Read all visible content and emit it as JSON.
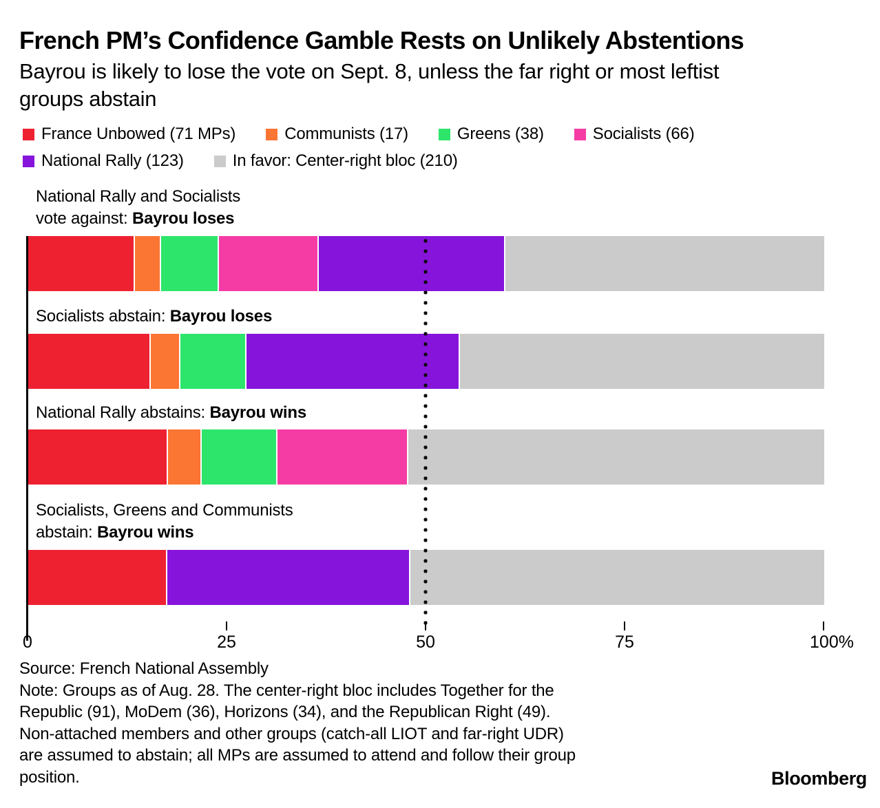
{
  "header": {
    "title": "French PM’s Confidence Gamble Rests on Unlikely Abstentions",
    "subtitle_lines": [
      "Bayrou is likely to lose the vote on Sept. 8, unless the far right or most leftist",
      "groups abstain"
    ]
  },
  "colors": {
    "france_unbowed": "#ee2131",
    "communists": "#fb7533",
    "greens": "#2de56b",
    "socialists": "#f53ca5",
    "national_rally": "#8614db",
    "in_favor": "#cbcbcb",
    "reference_line": "#0a0a0a",
    "axis": "#000000"
  },
  "legend": {
    "rows": [
      [
        {
          "key": "france_unbowed",
          "label": "France Unbowed (71 MPs)"
        },
        {
          "key": "communists",
          "label": "Communists (17)"
        },
        {
          "key": "greens",
          "label": "Greens (38)"
        },
        {
          "key": "socialists",
          "label": "Socialists (66)"
        }
      ],
      [
        {
          "key": "national_rally",
          "label": "National Rally (123)"
        },
        {
          "key": "in_favor",
          "label": "In favor: Center-right bloc (210)"
        }
      ]
    ]
  },
  "chart_data": {
    "type": "bar",
    "orientation": "horizontal",
    "stacked": true,
    "title": "French PM’s Confidence Gamble Rests on Unlikely Abstentions",
    "subtitle": "Bayrou is likely to lose the vote on Sept. 8, unless the far right or most leftist groups abstain",
    "xlim": [
      0,
      100
    ],
    "x_tick_values": [
      0,
      25,
      50,
      75,
      100
    ],
    "x_tick_labels": [
      "0",
      "25",
      "50",
      "75",
      "100%"
    ],
    "reference_line_pct": 50,
    "grid": false,
    "legend_position": "top",
    "parties": [
      {
        "key": "france_unbowed",
        "label": "France Unbowed",
        "mps": 71
      },
      {
        "key": "communists",
        "label": "Communists",
        "mps": 17
      },
      {
        "key": "greens",
        "label": "Greens",
        "mps": 38
      },
      {
        "key": "socialists",
        "label": "Socialists",
        "mps": 66
      },
      {
        "key": "national_rally",
        "label": "National Rally",
        "mps": 123
      },
      {
        "key": "in_favor",
        "label": "In favor: Center-right bloc",
        "mps": 210
      }
    ],
    "scenarios": [
      {
        "label_prefix": "National Rally and Socialists\nvote against: ",
        "label_bold": "Bayrou loses",
        "segments": [
          {
            "party": "france_unbowed",
            "mps": 71,
            "pct": 13.52
          },
          {
            "party": "communists",
            "mps": 17,
            "pct": 3.24
          },
          {
            "party": "greens",
            "mps": 38,
            "pct": 7.24
          },
          {
            "party": "socialists",
            "mps": 66,
            "pct": 12.57
          },
          {
            "party": "national_rally",
            "mps": 123,
            "pct": 23.43
          },
          {
            "party": "in_favor",
            "mps": 210,
            "pct": 40.0
          }
        ]
      },
      {
        "label_prefix": "Socialists abstain: ",
        "label_bold": "Bayrou loses",
        "segments": [
          {
            "party": "france_unbowed",
            "mps": 71,
            "pct": 15.47
          },
          {
            "party": "communists",
            "mps": 17,
            "pct": 3.7
          },
          {
            "party": "greens",
            "mps": 38,
            "pct": 8.28
          },
          {
            "party": "national_rally",
            "mps": 123,
            "pct": 26.8
          },
          {
            "party": "in_favor",
            "mps": 210,
            "pct": 45.75
          }
        ]
      },
      {
        "label_prefix": "National Rally abstains: ",
        "label_bold": "Bayrou wins",
        "segments": [
          {
            "party": "france_unbowed",
            "mps": 71,
            "pct": 17.66
          },
          {
            "party": "communists",
            "mps": 17,
            "pct": 4.23
          },
          {
            "party": "greens",
            "mps": 38,
            "pct": 9.45
          },
          {
            "party": "socialists",
            "mps": 66,
            "pct": 16.42
          },
          {
            "party": "in_favor",
            "mps": 210,
            "pct": 52.24
          }
        ]
      },
      {
        "label_prefix": "Socialists, Greens and Communists\nabstain: ",
        "label_bold": "Bayrou wins",
        "segments": [
          {
            "party": "france_unbowed",
            "mps": 71,
            "pct": 17.57
          },
          {
            "party": "national_rally",
            "mps": 123,
            "pct": 30.45
          },
          {
            "party": "in_favor",
            "mps": 210,
            "pct": 51.98
          }
        ]
      }
    ]
  },
  "footer": {
    "source": "Source: French National Assembly",
    "note_lines": [
      "Note: Groups as of Aug. 28. The center-right bloc includes Together for the",
      "Republic (91), MoDem (36), Horizons (34), and the Republican Right (49).",
      "Non-attached members and other groups (catch-all LIOT and far-right UDR)",
      "are assumed to abstain; all MPs are assumed to attend and follow their group",
      "position."
    ],
    "brand": "Bloomberg"
  }
}
